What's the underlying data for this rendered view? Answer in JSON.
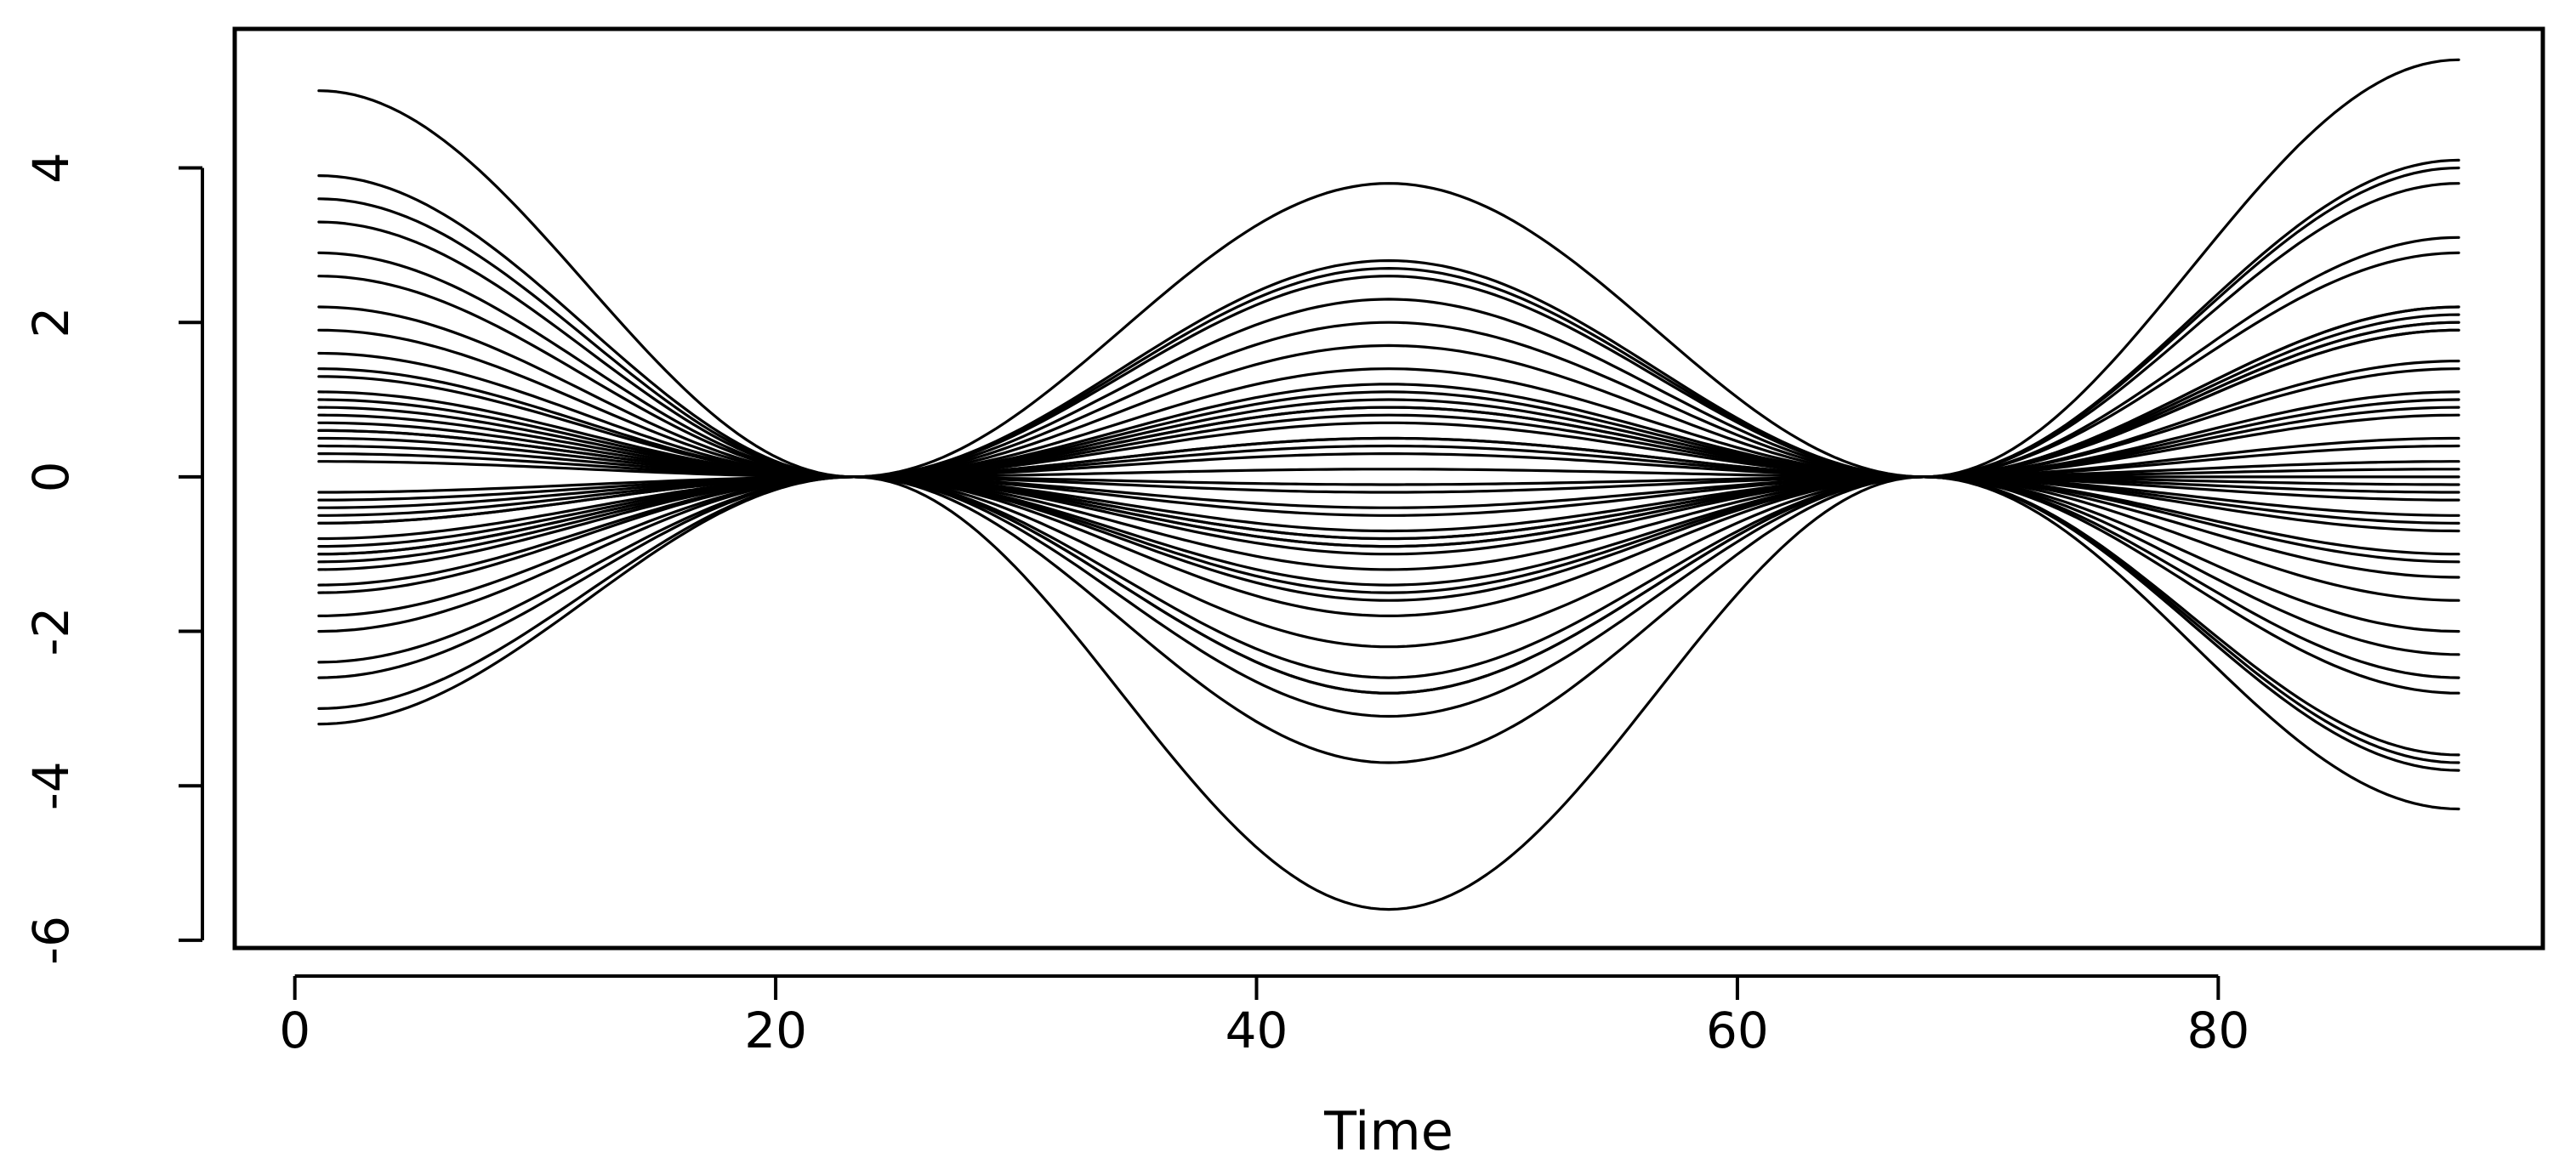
{
  "chart_data": {
    "type": "line",
    "title": "",
    "xlabel": "Time",
    "ylabel": "",
    "xlim": [
      -2.5,
      93.5
    ],
    "ylim": [
      -6.1,
      5.8
    ],
    "x_ticks": [
      0,
      20,
      40,
      60,
      80
    ],
    "y_ticks": [
      -6,
      -4,
      -2,
      0,
      2,
      4
    ],
    "x_tick_labels": [
      "0",
      "20",
      "40",
      "60",
      "80"
    ],
    "y_tick_labels": [
      "-6",
      "-4",
      "-2",
      "0",
      "2",
      "4"
    ],
    "grid": false,
    "legend": "none",
    "line_color": "#000000",
    "x": [
      1,
      90
    ],
    "series": [
      {
        "anchors": [
          5.0,
          0.0,
          -5.6,
          0.0,
          5.4
        ]
      },
      {
        "anchors": [
          3.9,
          0.0,
          -3.7,
          0.0,
          4.1
        ]
      },
      {
        "anchors": [
          3.6,
          0.0,
          -3.1,
          0.0,
          3.8
        ]
      },
      {
        "anchors": [
          3.3,
          0.0,
          -2.8,
          0.0,
          3.1
        ]
      },
      {
        "anchors": [
          2.9,
          0.0,
          -2.6,
          0.0,
          2.2
        ]
      },
      {
        "anchors": [
          2.6,
          0.0,
          -2.2,
          0.0,
          2.0
        ]
      },
      {
        "anchors": [
          2.2,
          0.0,
          -1.8,
          0.0,
          1.9
        ]
      },
      {
        "anchors": [
          1.9,
          0.0,
          -1.5,
          0.0,
          1.5
        ]
      },
      {
        "anchors": [
          1.6,
          0.0,
          -1.2,
          0.0,
          1.1
        ]
      },
      {
        "anchors": [
          1.3,
          0.0,
          -0.9,
          0.0,
          0.8
        ]
      },
      {
        "anchors": [
          1.0,
          0.0,
          -0.7,
          0.0,
          0.5
        ]
      },
      {
        "anchors": [
          0.8,
          0.0,
          -0.5,
          0.0,
          0.2
        ]
      },
      {
        "anchors": [
          0.6,
          0.0,
          -0.4,
          0.0,
          0.1
        ]
      },
      {
        "anchors": [
          0.4,
          0.0,
          -0.2,
          0.0,
          -0.1
        ]
      },
      {
        "anchors": [
          0.2,
          0.0,
          -0.1,
          0.0,
          -0.3
        ]
      },
      {
        "anchors": [
          -3.2,
          0.0,
          3.8,
          0.0,
          -4.3
        ]
      },
      {
        "anchors": [
          -3.0,
          0.0,
          2.8,
          0.0,
          -3.7
        ]
      },
      {
        "anchors": [
          -2.6,
          0.0,
          2.6,
          0.0,
          -3.6
        ]
      },
      {
        "anchors": [
          -2.4,
          0.0,
          2.3,
          0.0,
          -2.8
        ]
      },
      {
        "anchors": [
          -2.0,
          0.0,
          2.0,
          0.0,
          -2.3
        ]
      },
      {
        "anchors": [
          -1.8,
          0.0,
          1.7,
          0.0,
          -2.0
        ]
      },
      {
        "anchors": [
          -1.5,
          0.0,
          1.4,
          0.0,
          -1.6
        ]
      },
      {
        "anchors": [
          -1.2,
          0.0,
          1.1,
          0.0,
          -1.3
        ]
      },
      {
        "anchors": [
          -1.0,
          0.0,
          0.9,
          0.0,
          -1.0
        ]
      },
      {
        "anchors": [
          -0.8,
          0.0,
          0.7,
          0.0,
          -0.7
        ]
      },
      {
        "anchors": [
          -0.6,
          0.0,
          0.5,
          0.0,
          -0.5
        ]
      },
      {
        "anchors": [
          -0.4,
          0.0,
          0.3,
          0.0,
          -0.2
        ]
      },
      {
        "anchors": [
          -0.2,
          0.0,
          0.1,
          0.0,
          0.0
        ]
      },
      {
        "anchors": [
          -1.0,
          0.0,
          0.5,
          0.0,
          2.1
        ]
      },
      {
        "anchors": [
          -0.6,
          0.0,
          0.4,
          0.0,
          2.0
        ]
      },
      {
        "anchors": [
          0.9,
          0.0,
          -0.9,
          0.0,
          1.9
        ]
      },
      {
        "anchors": [
          0.7,
          0.0,
          -1.0,
          0.0,
          2.2
        ]
      },
      {
        "anchors": [
          -1.1,
          0.0,
          1.0,
          0.0,
          0.4
        ]
      },
      {
        "anchors": [
          0.5,
          0.0,
          -0.8,
          0.0,
          -0.6
        ]
      },
      {
        "anchors": [
          -0.9,
          0.0,
          0.8,
          0.0,
          1.4
        ]
      },
      {
        "anchors": [
          1.1,
          0.0,
          -1.6,
          0.0,
          0.9
        ]
      },
      {
        "anchors": [
          -0.3,
          0.0,
          -1.4,
          0.0,
          1.0
        ]
      },
      {
        "anchors": [
          0.3,
          0.0,
          1.2,
          0.0,
          -1.1
        ]
      },
      {
        "anchors": [
          -1.4,
          0.0,
          -0.8,
          0.0,
          2.9
        ]
      },
      {
        "anchors": [
          1.4,
          0.0,
          0.9,
          0.0,
          -2.6
        ]
      },
      {
        "anchors": [
          -0.5,
          0.0,
          -2.8,
          0.0,
          4.0
        ]
      },
      {
        "anchors": [
          0.6,
          0.0,
          2.7,
          0.0,
          -3.8
        ]
      }
    ]
  }
}
